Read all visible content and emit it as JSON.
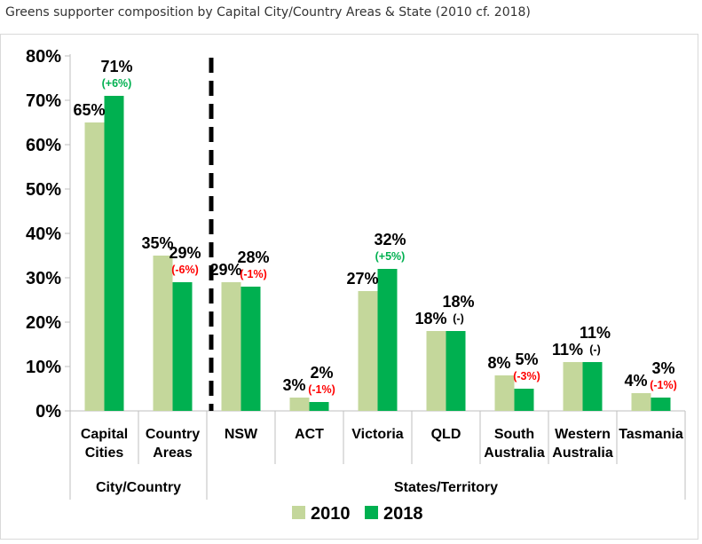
{
  "caption": "Greens supporter composition by Capital City/Country Areas & State (2010 cf. 2018)",
  "colors": {
    "s2010": "#c4d79b",
    "s2018": "#00b050",
    "up": "#00b050",
    "down": "#ff0000",
    "same": "#000000"
  },
  "chart_data": {
    "type": "bar",
    "title": "Greens supporter composition by Capital City/Country Areas & State (2010 cf. 2018)",
    "ylim": [
      0,
      80
    ],
    "yticks": [
      0,
      10,
      20,
      30,
      40,
      50,
      60,
      70,
      80
    ],
    "ytick_labels": [
      "0%",
      "10%",
      "20%",
      "30%",
      "40%",
      "50%",
      "60%",
      "70%",
      "80%"
    ],
    "categories": [
      [
        "Capital",
        "Cities"
      ],
      [
        "Country",
        "Areas"
      ],
      [
        "NSW"
      ],
      [
        "ACT"
      ],
      [
        "Victoria"
      ],
      [
        "QLD"
      ],
      [
        "South",
        "Australia"
      ],
      [
        "Western",
        "Australia"
      ],
      [
        "Tasmania"
      ]
    ],
    "groups": [
      {
        "label": "City/Country",
        "start": 0,
        "end": 1
      },
      {
        "label": "States/Territory",
        "start": 2,
        "end": 8
      }
    ],
    "series": [
      {
        "name": "2010",
        "values": [
          65,
          35,
          29,
          3,
          27,
          18,
          8,
          11,
          4
        ],
        "labels": [
          "65%",
          "35%",
          "29%",
          "3%",
          "27%",
          "18%",
          "8%",
          "11%",
          "4%"
        ]
      },
      {
        "name": "2018",
        "values": [
          71,
          29,
          28,
          2,
          32,
          18,
          5,
          11,
          3
        ],
        "labels": [
          "71%",
          "29%",
          "28%",
          "2%",
          "32%",
          "18%",
          "5%",
          "11%",
          "3%"
        ]
      }
    ],
    "changes": [
      "(+6%)",
      "(-6%)",
      "(-1%)",
      "(-1%)",
      "(+5%)",
      "(-)",
      "(-3%)",
      "(-)",
      "(-1%)"
    ],
    "legend": [
      "2010",
      "2018"
    ],
    "legend_position": "bottom",
    "divider_after_category": 1
  }
}
